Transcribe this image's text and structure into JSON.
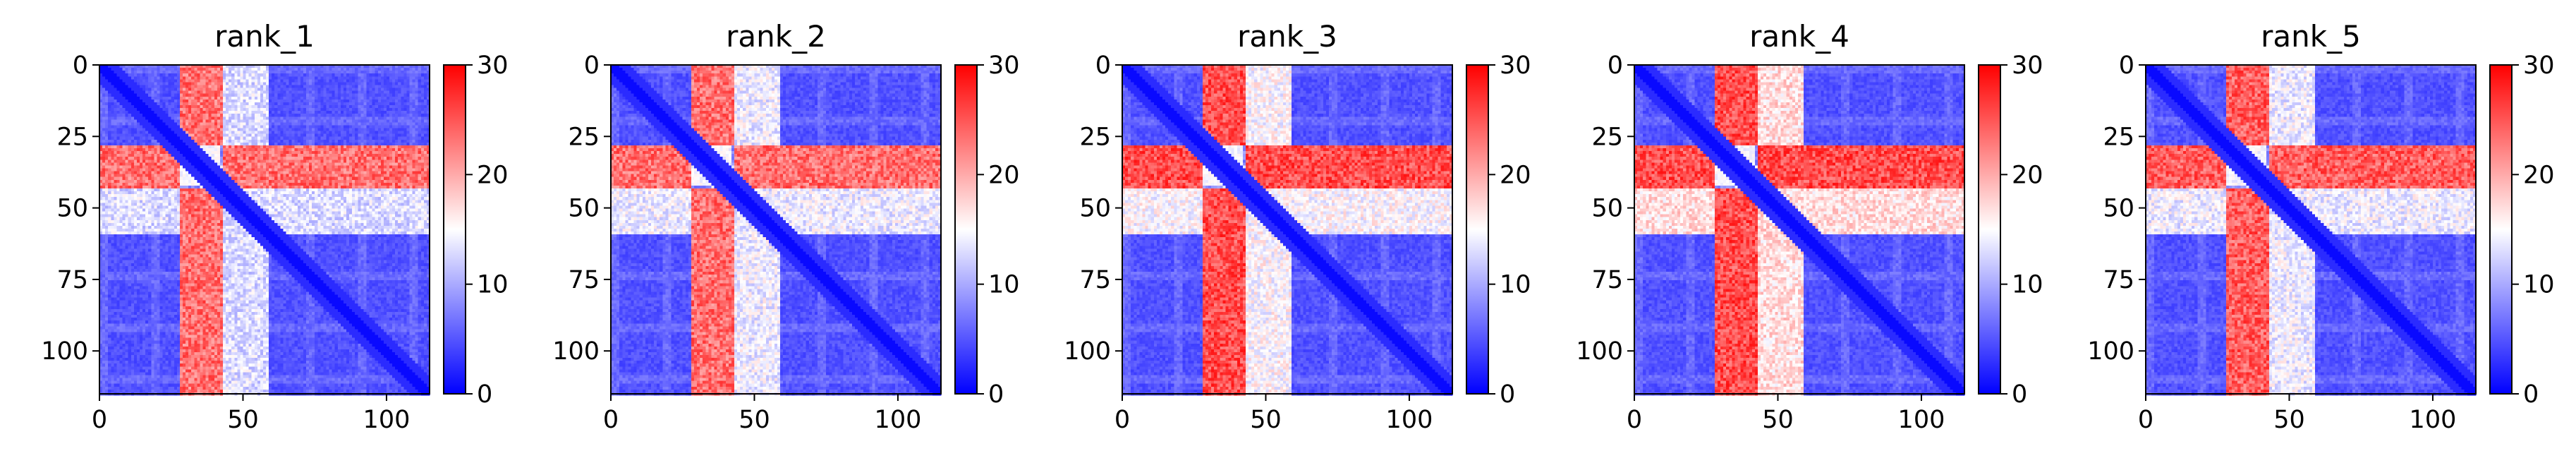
{
  "chart_data": [
    {
      "type": "heatmap",
      "title": "rank_1",
      "xlabel": "",
      "ylabel": "",
      "n": 115,
      "xlim": [
        0,
        115
      ],
      "ylim": [
        115,
        0
      ],
      "x_ticks": [
        0,
        50,
        100
      ],
      "y_ticks": [
        0,
        25,
        50,
        75,
        100
      ],
      "colorbar": {
        "min": 0,
        "max": 30,
        "ticks": [
          0,
          10,
          20,
          30
        ],
        "colormap": "bwr"
      },
      "features": {
        "hot_band": [
          28,
          42
        ],
        "warm_band": [
          43,
          58
        ],
        "warm_level": 13,
        "bright_column": 38,
        "band_level": 23
      }
    },
    {
      "type": "heatmap",
      "title": "rank_2",
      "xlabel": "",
      "ylabel": "",
      "n": 115,
      "xlim": [
        0,
        115
      ],
      "ylim": [
        115,
        0
      ],
      "x_ticks": [
        0,
        50,
        100
      ],
      "y_ticks": [
        0,
        25,
        50,
        75,
        100
      ],
      "colorbar": {
        "min": 0,
        "max": 30,
        "ticks": [
          0,
          10,
          20,
          30
        ],
        "colormap": "bwr"
      },
      "features": {
        "hot_band": [
          28,
          42
        ],
        "warm_band": [
          43,
          58
        ],
        "warm_level": 14,
        "bright_column": 38,
        "band_level": 23
      }
    },
    {
      "type": "heatmap",
      "title": "rank_3",
      "xlabel": "",
      "ylabel": "",
      "n": 115,
      "xlim": [
        0,
        115
      ],
      "ylim": [
        115,
        0
      ],
      "x_ticks": [
        0,
        50,
        100
      ],
      "y_ticks": [
        0,
        25,
        50,
        75,
        100
      ],
      "colorbar": {
        "min": 0,
        "max": 30,
        "ticks": [
          0,
          10,
          20,
          30
        ],
        "colormap": "bwr"
      },
      "features": {
        "hot_band": [
          28,
          42
        ],
        "warm_band": [
          43,
          58
        ],
        "warm_level": 15,
        "bright_column": 38,
        "band_level": 25
      }
    },
    {
      "type": "heatmap",
      "title": "rank_4",
      "xlabel": "",
      "ylabel": "",
      "n": 115,
      "xlim": [
        0,
        115
      ],
      "ylim": [
        115,
        0
      ],
      "x_ticks": [
        0,
        50,
        100
      ],
      "y_ticks": [
        0,
        25,
        50,
        75,
        100
      ],
      "colorbar": {
        "min": 0,
        "max": 30,
        "ticks": [
          0,
          10,
          20,
          30
        ],
        "colormap": "bwr"
      },
      "features": {
        "hot_band": [
          28,
          42
        ],
        "warm_band": [
          43,
          58
        ],
        "warm_level": 17,
        "bright_column": 38,
        "band_level": 25
      }
    },
    {
      "type": "heatmap",
      "title": "rank_5",
      "xlabel": "",
      "ylabel": "",
      "n": 115,
      "xlim": [
        0,
        115
      ],
      "ylim": [
        115,
        0
      ],
      "x_ticks": [
        0,
        50,
        100
      ],
      "y_ticks": [
        0,
        25,
        50,
        75,
        100
      ],
      "colorbar": {
        "min": 0,
        "max": 30,
        "ticks": [
          0,
          10,
          20,
          30
        ],
        "colormap": "bwr"
      },
      "features": {
        "hot_band": [
          28,
          42
        ],
        "warm_band": [
          43,
          58
        ],
        "warm_level": 14,
        "bright_column": 38,
        "band_level": 24
      }
    }
  ]
}
